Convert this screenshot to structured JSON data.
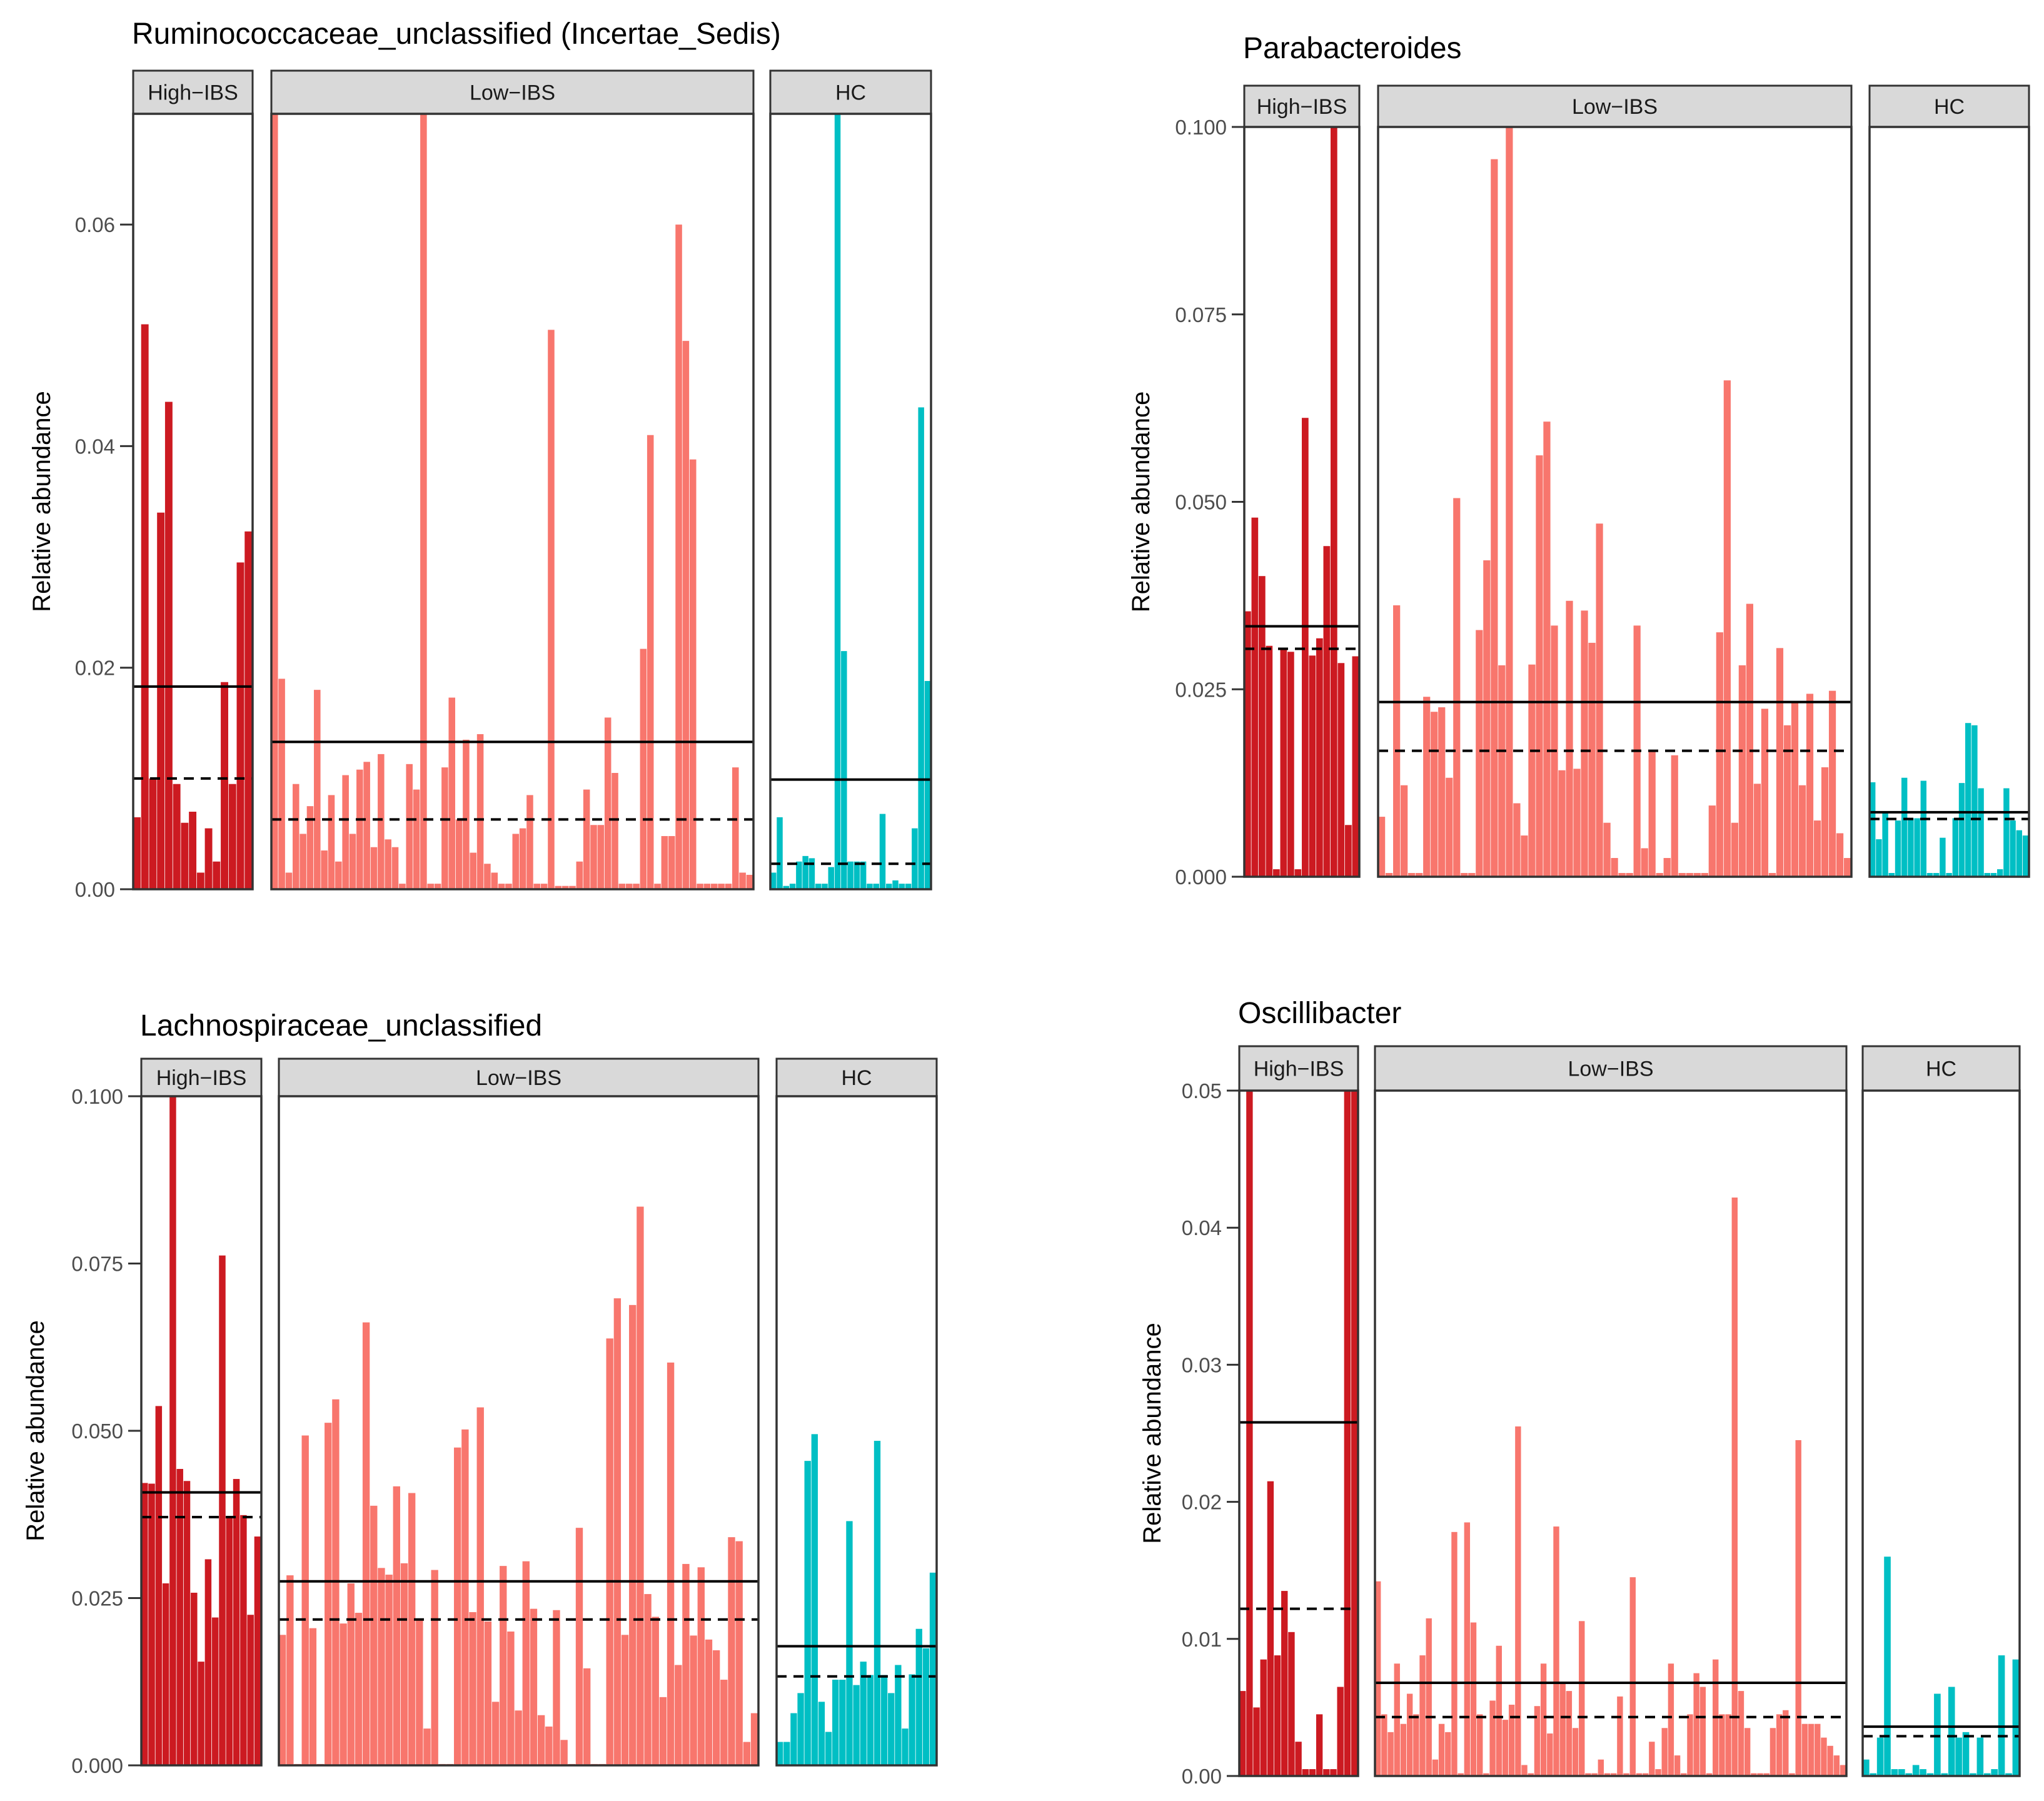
{
  "colors": {
    "high_ibs": "#cc1a21",
    "low_ibs": "#f8766d",
    "hc": "#00bfc4",
    "mean_line": "#000000",
    "median_line": "#000000",
    "strip_background": "#d9d9d9"
  },
  "chart_data": [
    {
      "type": "bar",
      "title": "Ruminococcaceae_unclassified (Incertae_Sedis)",
      "xlabel": "",
      "ylabel": "Relative abundance",
      "ylim": [
        0,
        0.07
      ],
      "yticks": [
        0.0,
        0.02,
        0.04,
        0.06
      ],
      "yticklabels": [
        "0.00",
        "0.02",
        "0.04",
        "0.06"
      ],
      "facets": [
        {
          "label": "High−IBS",
          "color_key": "high_ibs",
          "mean": 0.0183,
          "median": 0.01,
          "values": [
            0.0065,
            0.051,
            0.01,
            0.034,
            0.044,
            0.0095,
            0.006,
            0.007,
            0.0015,
            0.0055,
            0.0025,
            0.0187,
            0.0095,
            0.0295,
            0.0323
          ]
        },
        {
          "label": "Low−IBS",
          "color_key": "low_ibs",
          "mean": 0.0133,
          "median": 0.0063,
          "values": [
            0.07,
            0.019,
            0.0015,
            0.0095,
            0.005,
            0.0075,
            0.018,
            0.0035,
            0.0085,
            0.0025,
            0.0103,
            0.005,
            0.0108,
            0.0115,
            0.0038,
            0.0122,
            0.0045,
            0.0038,
            0.0005,
            0.0113,
            0.009,
            0.07,
            0.0005,
            0.0005,
            0.011,
            0.0173,
            0.0063,
            0.0135,
            0.0033,
            0.014,
            0.0023,
            0.0015,
            0.0005,
            0.0005,
            0.005,
            0.0055,
            0.0085,
            0.0005,
            0.0005,
            0.0505,
            0.0003,
            0.0003,
            0.0003,
            0.0025,
            0.009,
            0.0058,
            0.0058,
            0.0155,
            0.0105,
            0.0005,
            0.0005,
            0.0005,
            0.0217,
            0.041,
            0.0005,
            0.0048,
            0.0048,
            0.06,
            0.0495,
            0.0388,
            0.0005,
            0.0005,
            0.0005,
            0.0005,
            0.0005,
            0.011,
            0.0015,
            0.0013
          ]
        },
        {
          "label": "HC",
          "color_key": "hc",
          "mean": 0.0099,
          "median": 0.0023,
          "values": [
            0.0015,
            0.0065,
            0.0003,
            0.0005,
            0.0025,
            0.003,
            0.0028,
            0.0005,
            0.0005,
            0.002,
            0.07,
            0.0215,
            0.0025,
            0.0025,
            0.0025,
            0.0005,
            0.0005,
            0.0068,
            0.0005,
            0.0008,
            0.0005,
            0.0005,
            0.0055,
            0.0435,
            0.0188
          ]
        }
      ]
    },
    {
      "type": "bar",
      "title": "Parabacteroides",
      "xlabel": "",
      "ylabel": "Relative abundance",
      "ylim": [
        0,
        0.1
      ],
      "yticks": [
        0.0,
        0.025,
        0.05,
        0.075,
        0.1
      ],
      "yticklabels": [
        "0.000",
        "0.025",
        "0.050",
        "0.075",
        "0.100"
      ],
      "facets": [
        {
          "label": "High−IBS",
          "color_key": "high_ibs",
          "mean": 0.0334,
          "median": 0.0304,
          "values": [
            0.0354,
            0.0479,
            0.0401,
            0.0308,
            0.001,
            0.0303,
            0.03,
            0.001,
            0.0612,
            0.0295,
            0.0318,
            0.0441,
            0.1,
            0.0285,
            0.0069,
            0.0294
          ]
        },
        {
          "label": "Low−IBS",
          "color_key": "low_ibs",
          "mean": 0.0233,
          "median": 0.0168,
          "values": [
            0.008,
            0.0005,
            0.0362,
            0.0122,
            0.0005,
            0.0005,
            0.024,
            0.022,
            0.0226,
            0.0132,
            0.0505,
            0.0005,
            0.0005,
            0.0329,
            0.0422,
            0.0957,
            0.0282,
            0.1,
            0.0098,
            0.0055,
            0.0283,
            0.0562,
            0.0607,
            0.0335,
            0.0142,
            0.0368,
            0.0144,
            0.0355,
            0.0312,
            0.0471,
            0.0072,
            0.0025,
            0.0005,
            0.0005,
            0.0335,
            0.0038,
            0.0168,
            0.0005,
            0.0025,
            0.0162,
            0.0005,
            0.0005,
            0.0005,
            0.0005,
            0.0095,
            0.0326,
            0.0662,
            0.0072,
            0.0282,
            0.0364,
            0.0124,
            0.0224,
            0.0005,
            0.0305,
            0.0202,
            0.0234,
            0.0122,
            0.0244,
            0.0075,
            0.0146,
            0.0248,
            0.0058,
            0.0025
          ]
        },
        {
          "label": "HC",
          "color_key": "hc",
          "mean": 0.0086,
          "median": 0.0077,
          "values": [
            0.0126,
            0.005,
            0.0085,
            0.0005,
            0.0075,
            0.0132,
            0.0078,
            0.0078,
            0.0128,
            0.0005,
            0.0005,
            0.0052,
            0.0005,
            0.0078,
            0.0125,
            0.0205,
            0.0202,
            0.0118,
            0.0005,
            0.0005,
            0.001,
            0.0118,
            0.0075,
            0.0062,
            0.0055
          ]
        }
      ]
    },
    {
      "type": "bar",
      "title": "Lachnospiraceae_unclassified",
      "xlabel": "",
      "ylabel": "Relative abundance",
      "ylim": [
        0,
        0.1
      ],
      "yticks": [
        0.0,
        0.025,
        0.05,
        0.075,
        0.1
      ],
      "yticklabels": [
        "0.000",
        "0.025",
        "0.050",
        "0.075",
        "0.100"
      ],
      "facets": [
        {
          "label": "High−IBS",
          "color_key": "high_ibs",
          "mean": 0.0408,
          "median": 0.0371,
          "values": [
            0.0422,
            0.0421,
            0.0537,
            0.0272,
            0.1,
            0.0443,
            0.0425,
            0.0258,
            0.0155,
            0.0308,
            0.0221,
            0.0762,
            0.037,
            0.0428,
            0.0374,
            0.0225,
            0.0342
          ]
        },
        {
          "label": "Low−IBS",
          "color_key": "low_ibs",
          "mean": 0.0275,
          "median": 0.0218,
          "values": [
            0.0195,
            0.0284,
            0.0002,
            0.0493,
            0.0205,
            0.0002,
            0.0512,
            0.0547,
            0.0212,
            0.0272,
            0.0228,
            0.0662,
            0.0388,
            0.0295,
            0.0285,
            0.0417,
            0.0302,
            0.0407,
            0.0218,
            0.0055,
            0.0292,
            0.0002,
            0.0002,
            0.0475,
            0.0502,
            0.0229,
            0.0535,
            0.0215,
            0.0095,
            0.0298,
            0.02,
            0.0082,
            0.0305,
            0.0234,
            0.0075,
            0.0058,
            0.0232,
            0.0038,
            0.0002,
            0.0355,
            0.0145,
            0.0002,
            0.0002,
            0.0638,
            0.0698,
            0.0195,
            0.0688,
            0.0835,
            0.0256,
            0.0222,
            0.0102,
            0.0602,
            0.015,
            0.0301,
            0.0194,
            0.0296,
            0.0188,
            0.0172,
            0.0128,
            0.0341,
            0.0335,
            0.0035,
            0.0078
          ]
        },
        {
          "label": "HC",
          "color_key": "hc",
          "mean": 0.0178,
          "median": 0.0133,
          "values": [
            0.0035,
            0.0035,
            0.0078,
            0.0108,
            0.0455,
            0.0495,
            0.0095,
            0.005,
            0.0128,
            0.0128,
            0.0365,
            0.012,
            0.0155,
            0.0135,
            0.0485,
            0.0135,
            0.0108,
            0.015,
            0.0055,
            0.0136,
            0.0204,
            0.0175,
            0.0288
          ]
        }
      ]
    },
    {
      "type": "bar",
      "title": "Oscillibacter",
      "xlabel": "",
      "ylabel": "Relative abundance",
      "ylim": [
        0,
        0.05
      ],
      "yticks": [
        0.0,
        0.01,
        0.02,
        0.03,
        0.04,
        0.05
      ],
      "yticklabels": [
        "0.00",
        "0.01",
        "0.02",
        "0.03",
        "0.04",
        "0.05"
      ],
      "facets": [
        {
          "label": "High−IBS",
          "color_key": "high_ibs",
          "mean": 0.0258,
          "median": 0.0122,
          "values": [
            0.0062,
            0.05,
            0.005,
            0.0085,
            0.0215,
            0.0088,
            0.0135,
            0.0105,
            0.0025,
            0.0005,
            0.0005,
            0.0045,
            0.0005,
            0.0005,
            0.0065,
            0.05,
            0.05
          ]
        },
        {
          "label": "Low−IBS",
          "color_key": "low_ibs",
          "mean": 0.0068,
          "median": 0.0043,
          "values": [
            0.0142,
            0.0045,
            0.0032,
            0.0082,
            0.0038,
            0.006,
            0.0045,
            0.0088,
            0.0115,
            0.0012,
            0.0038,
            0.0032,
            0.0178,
            0.0002,
            0.0185,
            0.0112,
            0.0045,
            0.0002,
            0.0055,
            0.0095,
            0.0041,
            0.0052,
            0.0255,
            0.0008,
            0.0002,
            0.0051,
            0.0082,
            0.0031,
            0.0182,
            0.0068,
            0.0062,
            0.0035,
            0.0113,
            0.0002,
            0.0002,
            0.0012,
            0.0002,
            0.0002,
            0.0058,
            0.0002,
            0.0145,
            0.0002,
            0.0002,
            0.0025,
            0.0005,
            0.0035,
            0.0082,
            0.0015,
            0.0002,
            0.0045,
            0.0075,
            0.0065,
            0.0002,
            0.0085,
            0.0045,
            0.0045,
            0.0422,
            0.0062,
            0.0035,
            0.0002,
            0.0002,
            0.0002,
            0.0035,
            0.0045,
            0.0048,
            0.0002,
            0.0245,
            0.0038,
            0.0038,
            0.0038,
            0.0028,
            0.0022,
            0.0015,
            0.0008
          ]
        },
        {
          "label": "HC",
          "color_key": "hc",
          "mean": 0.0036,
          "median": 0.0029,
          "values": [
            0.0012,
            0.0002,
            0.0028,
            0.016,
            0.0005,
            0.0005,
            0.0002,
            0.0008,
            0.0005,
            0.0002,
            0.006,
            0.0002,
            0.0065,
            0.0028,
            0.0032,
            0.0002,
            0.0028,
            0.0002,
            0.0005,
            0.0088,
            0.0002,
            0.0085
          ]
        }
      ]
    }
  ]
}
